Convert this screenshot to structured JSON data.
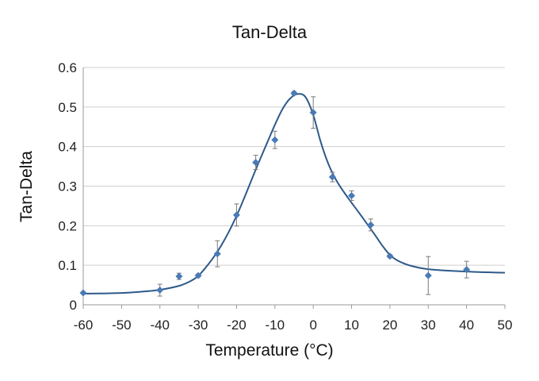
{
  "chart_data": {
    "type": "scatter",
    "title": "Tan-Delta",
    "xlabel": "Temperature (°C)",
    "ylabel": "Tan-Delta",
    "xlim": [
      -60,
      50
    ],
    "ylim": [
      0,
      0.6
    ],
    "x_ticks": [
      -60,
      -50,
      -40,
      -30,
      -20,
      -10,
      0,
      10,
      20,
      30,
      40,
      50
    ],
    "y_ticks": [
      0,
      0.1,
      0.2,
      0.3,
      0.4,
      0.5,
      0.6
    ],
    "x_tick_labels": [
      "-60",
      "-50",
      "-40",
      "-30",
      "-20",
      "-10",
      "0",
      "10",
      "20",
      "30",
      "40",
      "50"
    ],
    "y_tick_labels": [
      "0",
      "0.1",
      "0.2",
      "0.3",
      "0.4",
      "0.5",
      "0.6"
    ],
    "grid": "horizontal",
    "legend": "none",
    "series": [
      {
        "marker": "diamond",
        "points": [
          {
            "x": -60,
            "y": 0.03,
            "err": 0
          },
          {
            "x": -40,
            "y": 0.037,
            "err": 0.015
          },
          {
            "x": -35,
            "y": 0.072,
            "err": 0.008
          },
          {
            "x": -30,
            "y": 0.074,
            "err": 0.004
          },
          {
            "x": -25,
            "y": 0.129,
            "err": 0.033
          },
          {
            "x": -20,
            "y": 0.227,
            "err": 0.028
          },
          {
            "x": -15,
            "y": 0.36,
            "err": 0.018
          },
          {
            "x": -10,
            "y": 0.417,
            "err": 0.022
          },
          {
            "x": -5,
            "y": 0.535,
            "err": 0.004
          },
          {
            "x": 0,
            "y": 0.486,
            "err": 0.04
          },
          {
            "x": 5,
            "y": 0.323,
            "err": 0.012
          },
          {
            "x": 10,
            "y": 0.276,
            "err": 0.012
          },
          {
            "x": 15,
            "y": 0.202,
            "err": 0.015
          },
          {
            "x": 20,
            "y": 0.123,
            "err": 0.004
          },
          {
            "x": 30,
            "y": 0.074,
            "err": 0.048
          },
          {
            "x": 40,
            "y": 0.089,
            "err": 0.021
          }
        ]
      }
    ],
    "fit_curve": {
      "x": [
        -60,
        -50,
        -45,
        -40,
        -35,
        -32,
        -30,
        -28,
        -26,
        -24,
        -22,
        -20,
        -18,
        -16,
        -14,
        -12,
        -10,
        -8,
        -6,
        -4,
        -2,
        0,
        2,
        4,
        6,
        8,
        10,
        12,
        14,
        16,
        18,
        20,
        22,
        25,
        30,
        40,
        50
      ],
      "y": [
        0.028,
        0.03,
        0.033,
        0.038,
        0.048,
        0.06,
        0.073,
        0.095,
        0.12,
        0.15,
        0.185,
        0.225,
        0.27,
        0.318,
        0.365,
        0.41,
        0.455,
        0.495,
        0.522,
        0.533,
        0.525,
        0.48,
        0.41,
        0.355,
        0.315,
        0.285,
        0.258,
        0.232,
        0.205,
        0.178,
        0.15,
        0.126,
        0.112,
        0.1,
        0.09,
        0.084,
        0.081
      ]
    },
    "colors": {
      "marker": "#4a7ab5",
      "line": "#2d5a8a",
      "error_bar": "#7a7a7a",
      "grid": "#cfcfcf",
      "axis": "#9a9a9a"
    }
  }
}
